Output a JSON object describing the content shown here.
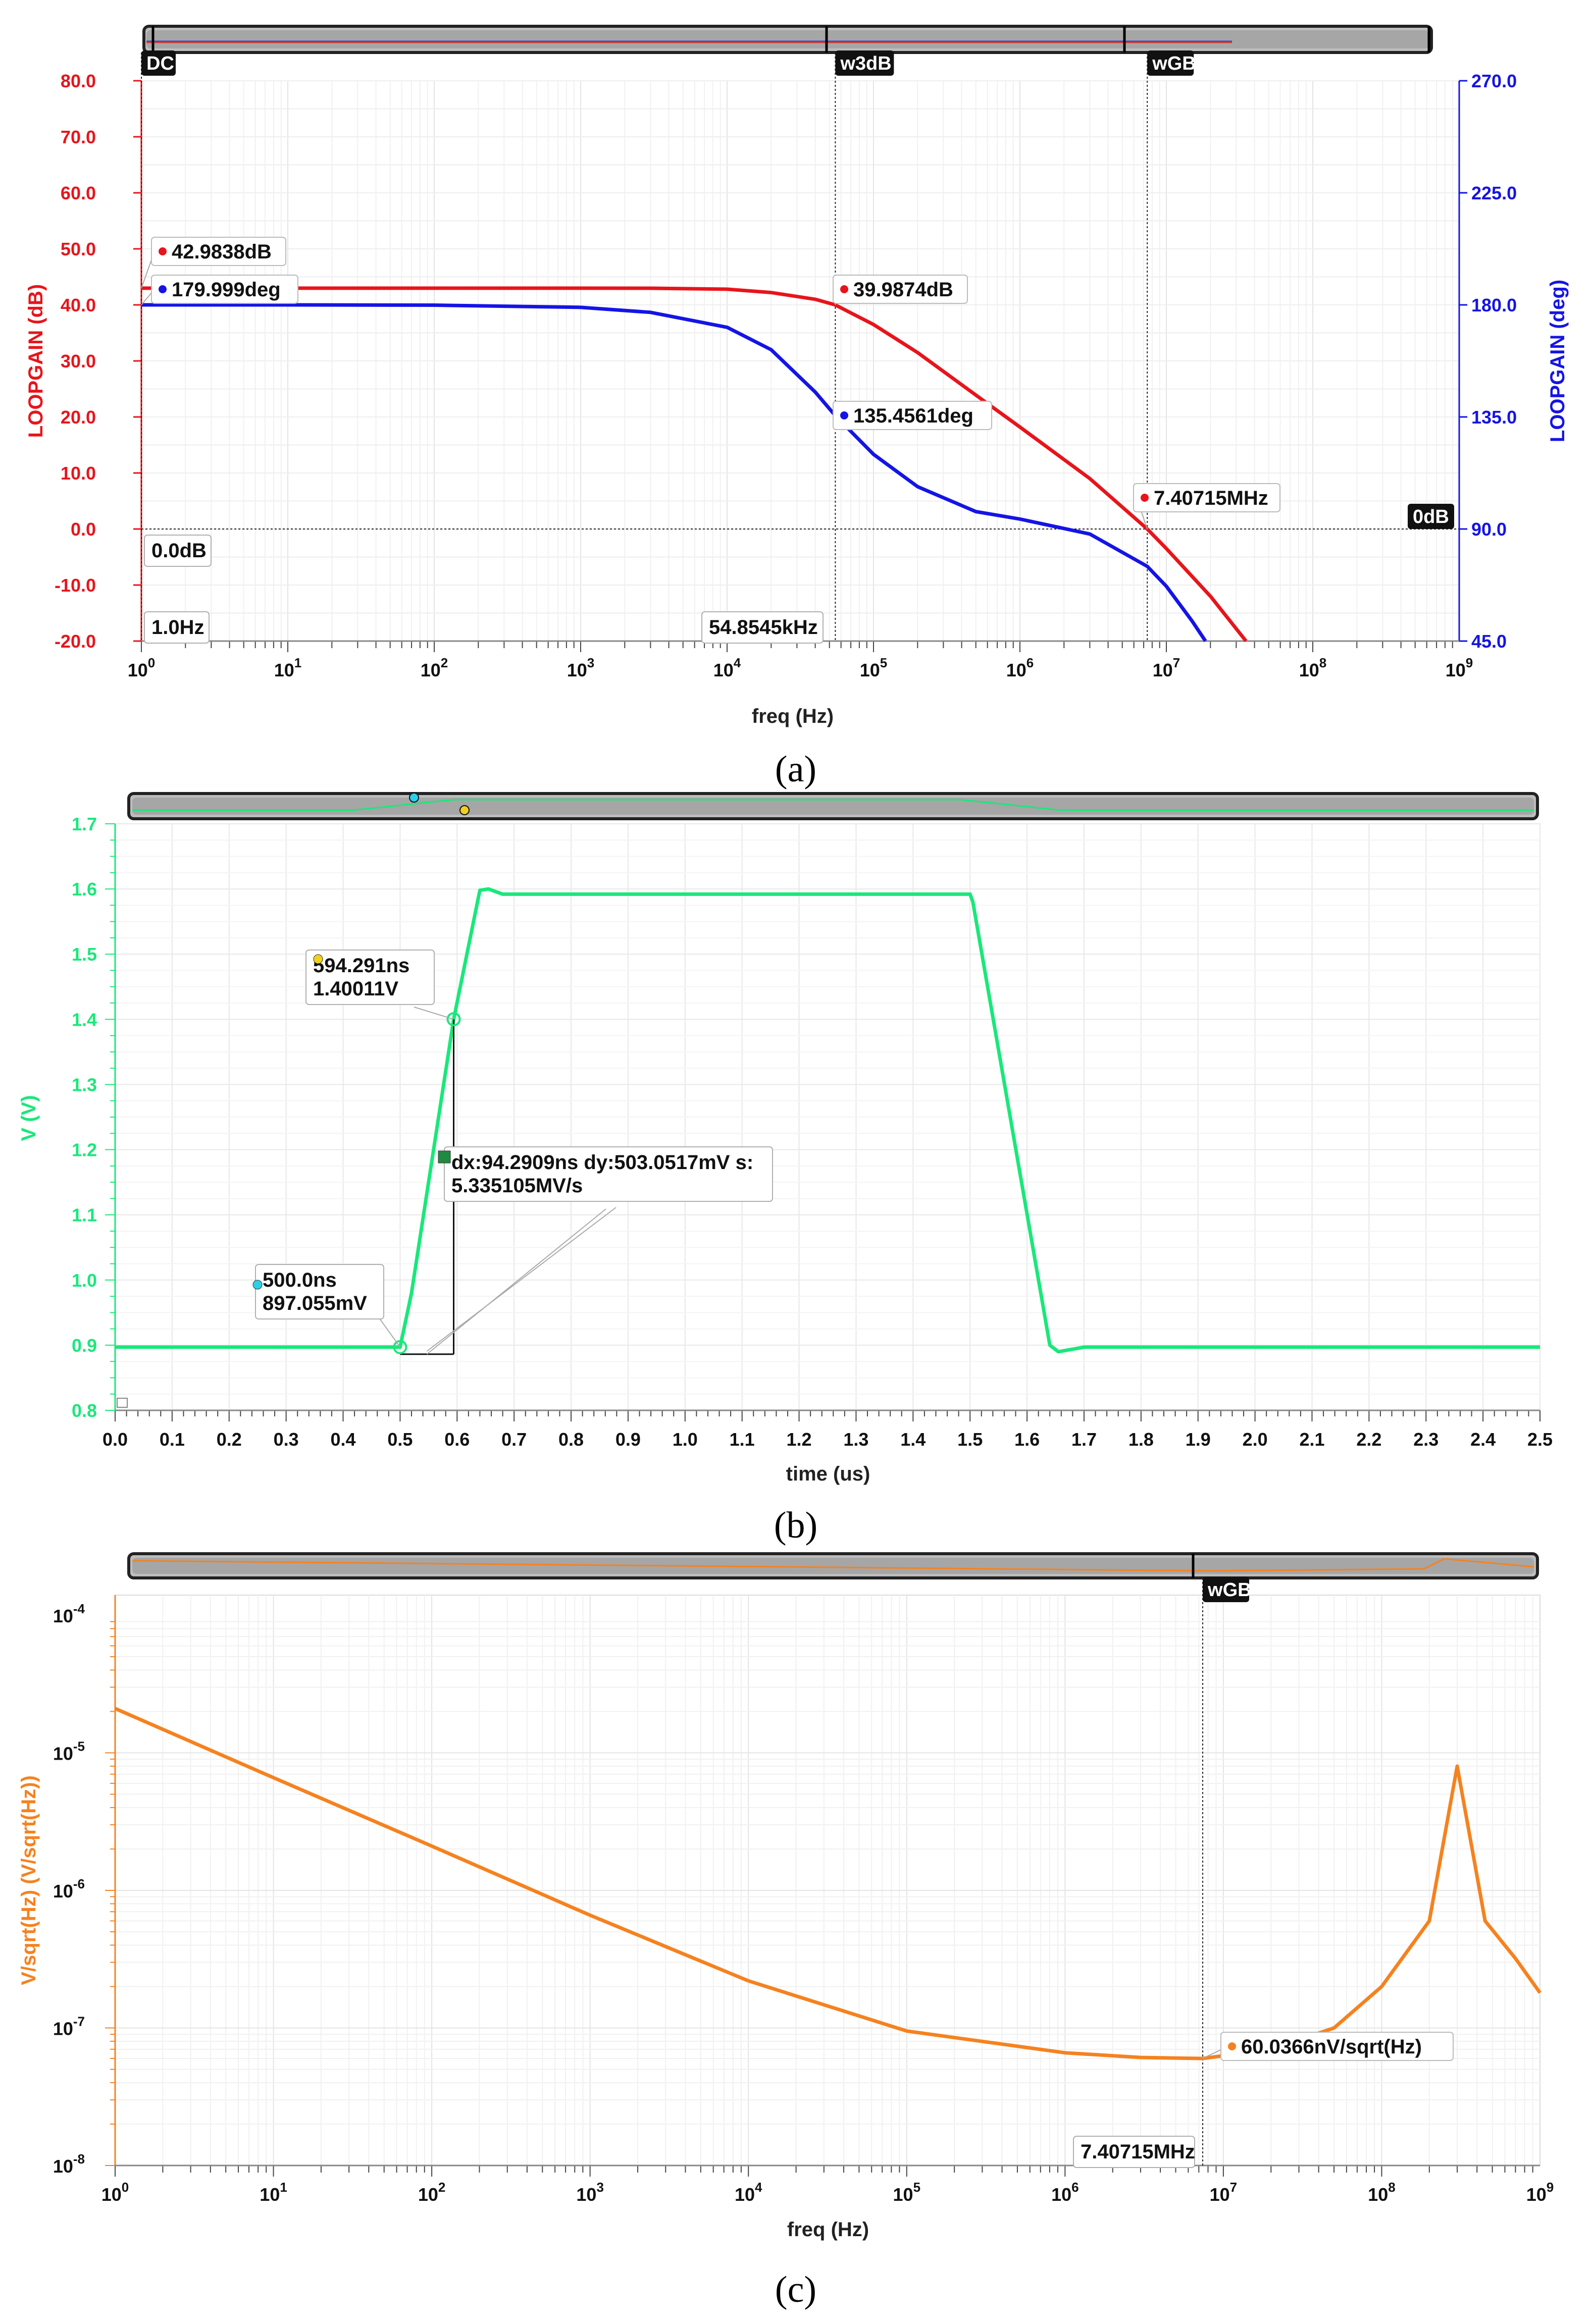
{
  "chart_data": [
    {
      "panel": "(a)",
      "type": "line",
      "xlabel": "freq (Hz)",
      "xscale": "log",
      "xlim": [
        1,
        1000000000
      ],
      "ylabel_left": "LOOPGAIN (dB)",
      "ylabel_right": "LOOPGAIN (deg)",
      "ylim_left": [
        -20,
        80
      ],
      "ylim_right": [
        45,
        270
      ],
      "yticks_left": [
        "80.0",
        "70.0",
        "60.0",
        "50.0",
        "40.0",
        "30.0",
        "20.0",
        "10.0",
        "0.0",
        "-10.0",
        "-20.0"
      ],
      "yticks_right": [
        "270.0",
        "225.0",
        "180.0",
        "135.0",
        "90.0",
        "45.0"
      ],
      "xtick_mantissa": [
        "10",
        "10",
        "10",
        "10",
        "10",
        "10",
        "10",
        "10",
        "10",
        "10"
      ],
      "xtick_exponent": [
        "0",
        "1",
        "2",
        "3",
        "4",
        "5",
        "6",
        "7",
        "8",
        "9"
      ],
      "series": [
        {
          "name": "LOOPGAIN (dB)",
          "color": "#e8141b",
          "axis": "left",
          "x": [
            1,
            10,
            100,
            1000,
            3000,
            10000,
            20000,
            40000,
            54854.5,
            100000,
            200000,
            500000,
            1000000,
            3000000,
            7407150,
            10000000,
            20000000,
            35000000
          ],
          "y": [
            42.98,
            42.98,
            42.98,
            42.98,
            42.97,
            42.8,
            42.2,
            41,
            39.99,
            36.5,
            31.5,
            23.9,
            18.2,
            9.0,
            0.0,
            -3.5,
            -12,
            -20
          ]
        },
        {
          "name": "LOOPGAIN (deg)",
          "color": "#1414e6",
          "axis": "right",
          "x": [
            1,
            10,
            100,
            1000,
            3000,
            10000,
            20000,
            40000,
            54854.5,
            100000,
            200000,
            500000,
            1000000,
            3000000,
            7407150,
            10000000,
            15000000,
            18500000
          ],
          "y": [
            180,
            180,
            179.9,
            179,
            177,
            171,
            162,
            145,
            135.5,
            120,
            107,
            97,
            94,
            88,
            75,
            67,
            53,
            45
          ]
        }
      ],
      "cursors": [
        {
          "label": "DC",
          "x": 1
        },
        {
          "label": "w3dB",
          "x": 54854.5
        },
        {
          "label": "wGB",
          "x": 7407150
        }
      ],
      "hline": {
        "label": "0dB",
        "y": 0
      },
      "annotations": [
        {
          "text": "42.9838dB",
          "series": 0,
          "x": 1,
          "y": 42.98
        },
        {
          "text": "179.999deg",
          "series": 1,
          "x": 1,
          "y": 180
        },
        {
          "text": "39.9874dB",
          "series": 0,
          "x": 54854.5,
          "y": 39.99
        },
        {
          "text": "135.4561deg",
          "series": 1,
          "x": 54854.5,
          "y": 135.46
        },
        {
          "text": "7.40715MHz",
          "series": 0,
          "x": 7407150,
          "y": 0
        }
      ],
      "axis_readouts": [
        "0.0dB",
        "1.0Hz",
        "54.8545kHz"
      ]
    },
    {
      "panel": "(b)",
      "type": "line",
      "xlabel": "time (us)",
      "ylabel": "V (V)",
      "xlim": [
        0,
        2.5
      ],
      "ylim": [
        0.8,
        1.7
      ],
      "xticks": [
        "0.0",
        "0.1",
        "0.2",
        "0.3",
        "0.4",
        "0.5",
        "0.6",
        "0.7",
        "0.8",
        "0.9",
        "1.0",
        "1.1",
        "1.2",
        "1.3",
        "1.4",
        "1.5",
        "1.6",
        "1.7",
        "1.8",
        "1.9",
        "2.0",
        "2.1",
        "2.2",
        "2.3",
        "2.4",
        "2.5"
      ],
      "yticks": [
        "1.7",
        "1.6",
        "1.5",
        "1.4",
        "1.3",
        "1.2",
        "1.1",
        "1.0",
        "0.9",
        "0.8"
      ],
      "series": [
        {
          "name": "V",
          "color": "#19e87a",
          "x": [
            0,
            0.5,
            0.52,
            0.594,
            0.64,
            0.655,
            0.68,
            0.7,
            1.5,
            1.505,
            1.64,
            1.655,
            1.7,
            2.5
          ],
          "y": [
            0.897,
            0.897,
            0.98,
            1.4,
            1.598,
            1.6,
            1.592,
            1.592,
            1.592,
            1.58,
            0.9,
            0.89,
            0.897,
            0.897
          ]
        }
      ],
      "annotations": [
        {
          "text": [
            "500.0ns",
            "897.055mV"
          ],
          "x": 0.5,
          "y": 0.897
        },
        {
          "text": [
            "594.291ns",
            "1.40011V"
          ],
          "x": 0.594,
          "y": 1.40011
        },
        {
          "text": [
            "dx:94.2909ns dy:503.0517mV s:",
            "5.335105MV/s"
          ],
          "x": 0.547,
          "y": 0.897
        }
      ]
    },
    {
      "panel": "(c)",
      "type": "line",
      "xlabel": "freq (Hz)",
      "ylabel": "V/sqrt(Hz) (V/sqrt(Hz))",
      "xscale": "log",
      "yscale": "log",
      "xlim": [
        1,
        1000000000
      ],
      "ylim": [
        1e-08,
        0.0001
      ],
      "xtick_mantissa": [
        "10",
        "10",
        "10",
        "10",
        "10",
        "10",
        "10",
        "10",
        "10",
        "10"
      ],
      "xtick_exponent": [
        "0",
        "1",
        "2",
        "3",
        "4",
        "5",
        "6",
        "7",
        "8",
        "9"
      ],
      "ytick_mantissa": [
        "10",
        "10",
        "10",
        "10",
        "10"
      ],
      "ytick_exponent": [
        "-4",
        "-5",
        "-6",
        "-7",
        "-8"
      ],
      "series": [
        {
          "name": "V/sqrt(Hz)",
          "color": "#f5821f",
          "x": [
            1,
            10,
            100,
            1000,
            10000,
            100000,
            1000000,
            3000000,
            7407150,
            20000000,
            50000000,
            100000000,
            200000000,
            300000000,
            450000000,
            700000000,
            1000000000
          ],
          "y": [
            2.1e-05,
            6.6e-06,
            2.1e-06,
            6.6e-07,
            2.2e-07,
            9.5e-08,
            6.6e-08,
            6.1e-08,
            6e-08,
            7e-08,
            1e-07,
            2e-07,
            6e-07,
            8e-06,
            6e-07,
            3.2e-07,
            1.8e-07
          ]
        }
      ],
      "cursors": [
        {
          "label": "wGB",
          "x": 7407150
        }
      ],
      "annotations": [
        {
          "text": "60.0366nV/sqrt(Hz)",
          "x": 7407150,
          "y": 6.00366e-08
        }
      ],
      "axis_readouts": [
        "7.40715MHz"
      ]
    }
  ]
}
